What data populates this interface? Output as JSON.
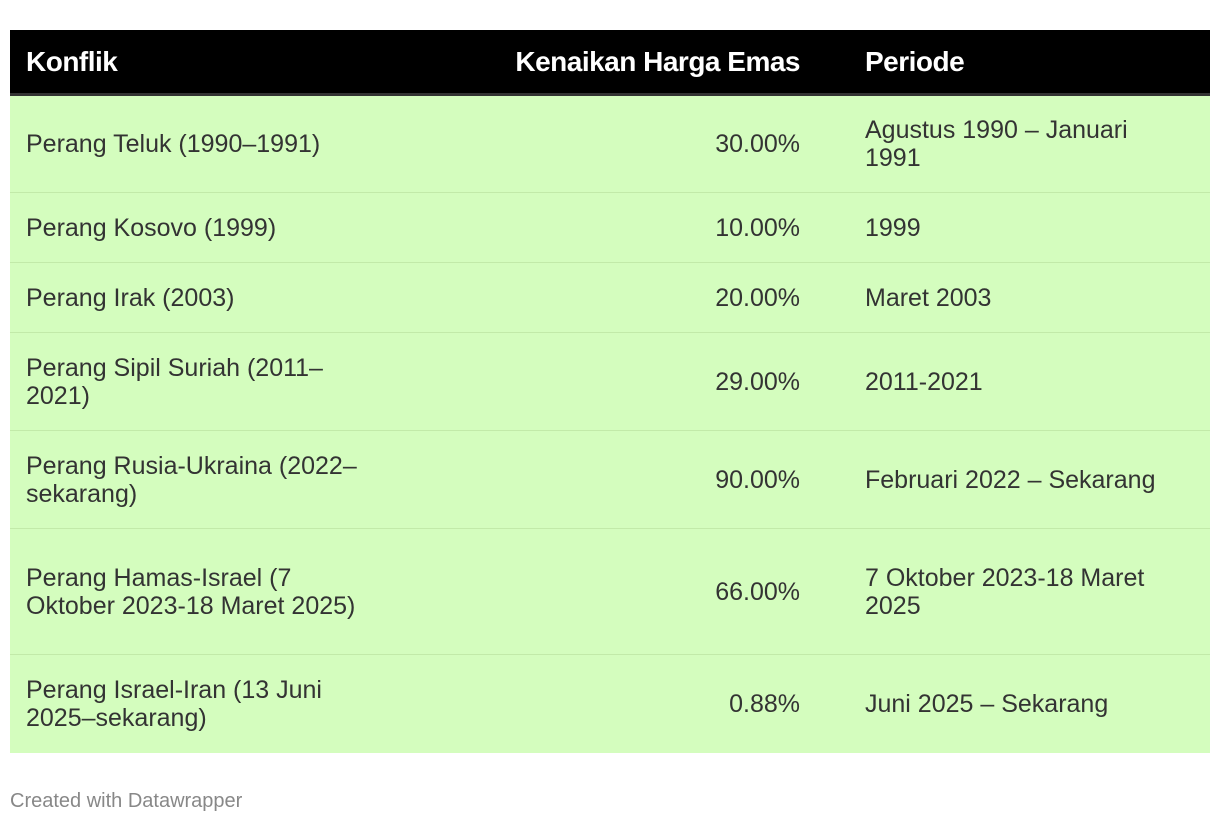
{
  "chart_data": {
    "type": "table",
    "columns": [
      "Konflik",
      "Kenaikan Harga Emas",
      "Periode"
    ],
    "rows": [
      {
        "konflik": "Perang Teluk (1990–1991)",
        "kenaikan": "30.00%",
        "periode": "Agustus 1990 – Januari 1991"
      },
      {
        "konflik": "Perang Kosovo (1999)",
        "kenaikan": "10.00%",
        "periode": "1999"
      },
      {
        "konflik": "Perang Irak (2003)",
        "kenaikan": "20.00%",
        "periode": "Maret 2003"
      },
      {
        "konflik": "Perang Sipil Suriah (2011–2021)",
        "kenaikan": "29.00%",
        "periode": "2011-2021"
      },
      {
        "konflik": "Perang Rusia-Ukraina (2022–sekarang)",
        "kenaikan": "90.00%",
        "periode": "Februari 2022 – Sekarang"
      },
      {
        "konflik": "Perang Hamas-Israel (7 Oktober 2023-18 Maret 2025)",
        "kenaikan": "66.00%",
        "periode": "7 Oktober 2023-18 Maret 2025"
      },
      {
        "konflik": "Perang Israel-Iran (13 Juni 2025–sekarang)",
        "kenaikan": "0.88%",
        "periode": "Juni 2025 – Sekarang"
      }
    ]
  },
  "footer": {
    "credit": "Created with Datawrapper"
  },
  "colors": {
    "header_bg": "#000000",
    "header_text": "#ffffff",
    "row_bg": "#d4fdbe",
    "row_divider": "#c2eaa9",
    "body_text": "#333333",
    "footer_text": "#888888"
  }
}
